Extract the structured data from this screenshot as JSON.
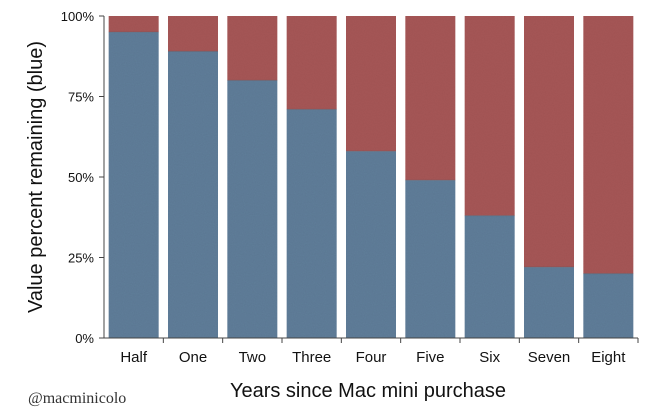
{
  "chart_data": {
    "type": "bar",
    "stacked": true,
    "categories": [
      "Half",
      "One",
      "Two",
      "Three",
      "Four",
      "Five",
      "Six",
      "Seven",
      "Eight"
    ],
    "series": [
      {
        "color": "#5f7d99",
        "values": [
          95,
          89,
          80,
          71,
          58,
          49,
          38,
          22,
          20
        ]
      },
      {
        "color": "#a65656",
        "values": [
          5,
          11,
          20,
          29,
          42,
          51,
          62,
          78,
          80
        ]
      }
    ],
    "xlabel": "Years since Mac mini purchase",
    "ylabel": "Value percent remaining (blue)",
    "ylim": [
      0,
      100
    ],
    "yticks": [
      0,
      25,
      50,
      75,
      100
    ],
    "ytick_labels": [
      "0%",
      "25%",
      "50%",
      "75%",
      "100%"
    ],
    "grid": false,
    "legend": "none"
  },
  "watermark": "@macminicolo"
}
